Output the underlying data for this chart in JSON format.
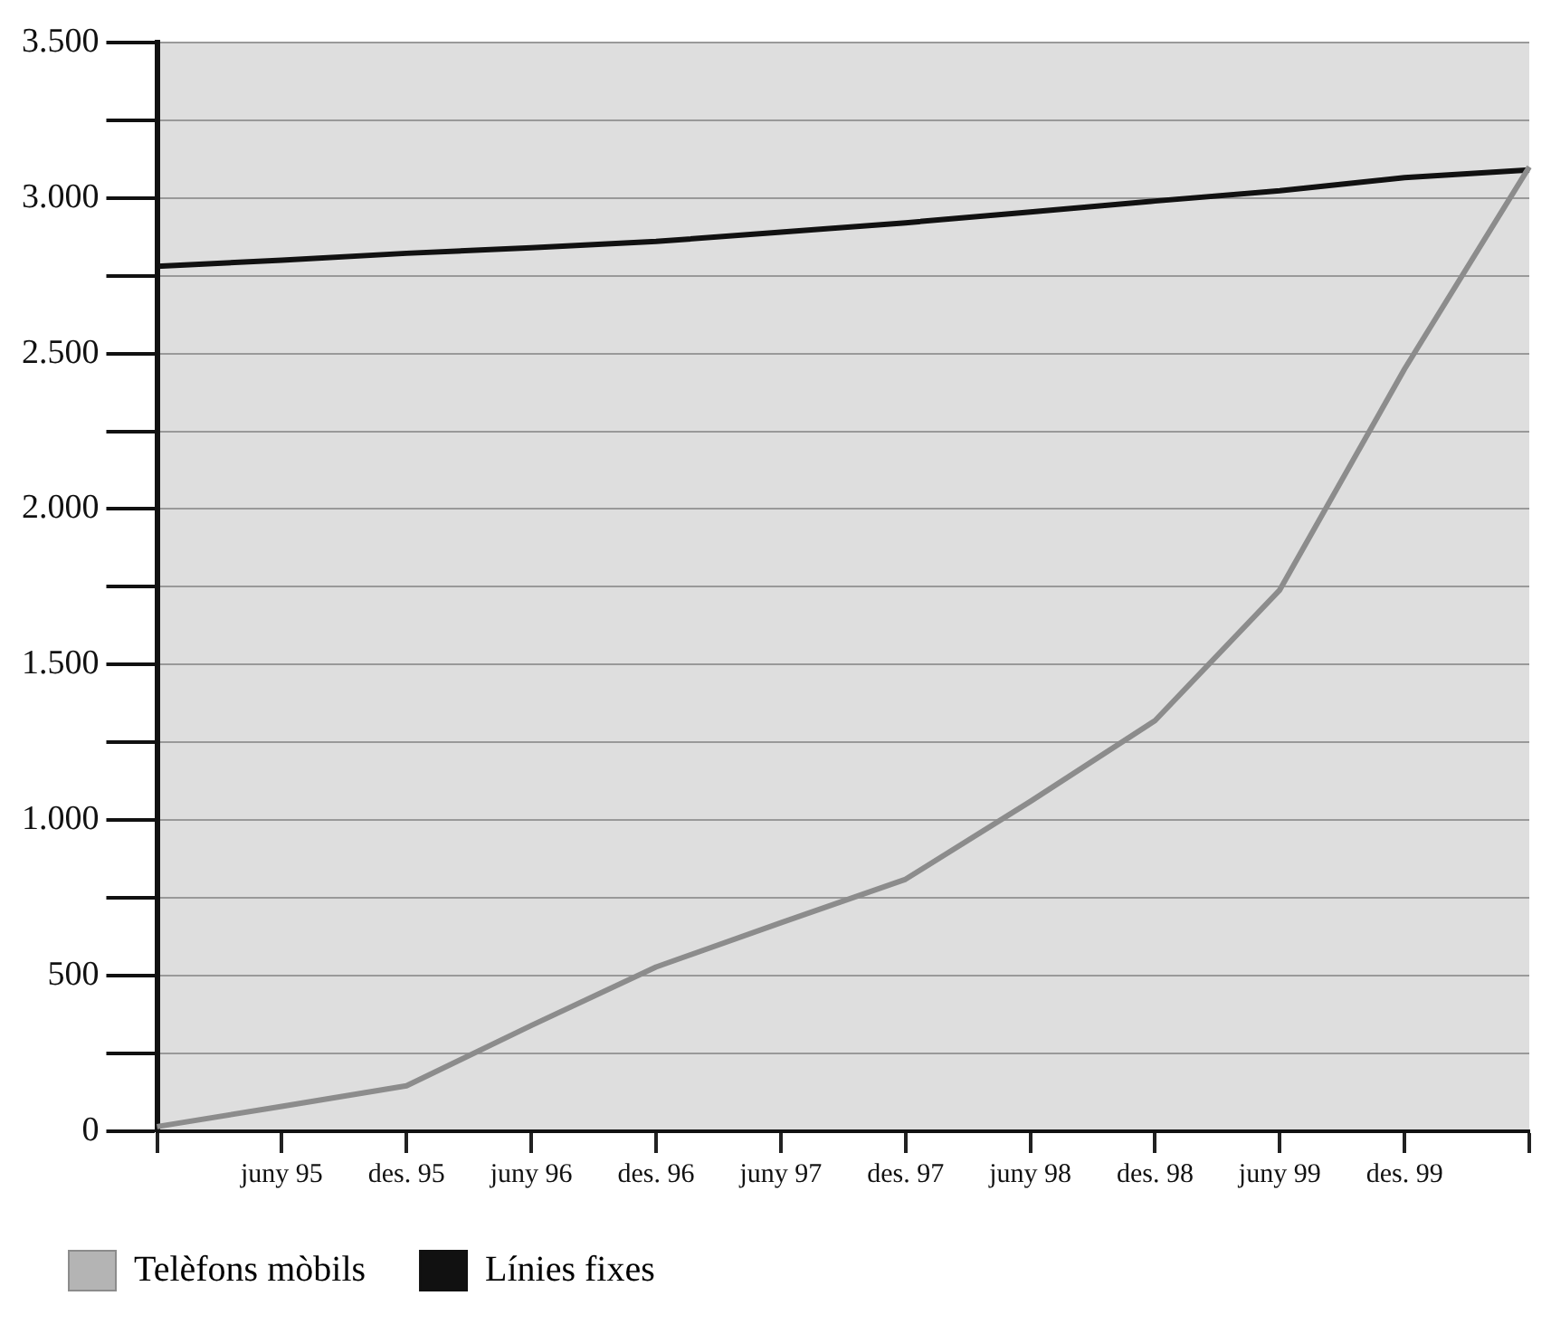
{
  "chart_data": {
    "type": "line",
    "categories": [
      null,
      "juny 95",
      "des. 95",
      "juny 96",
      "des. 96",
      "juny 97",
      "des. 97",
      "juny 98",
      "des. 98",
      "juny 99",
      "des. 99",
      null
    ],
    "series": [
      {
        "name": "Telèfons mòbils",
        "color": "#8c8c8c",
        "values": [
          15,
          80,
          146,
          340,
          528,
          670,
          810,
          1060,
          1320,
          1740,
          2450,
          3100
        ]
      },
      {
        "name": "Línies fixes",
        "color": "#111111",
        "values": [
          2780,
          2800,
          2822,
          2840,
          2860,
          2890,
          2920,
          2955,
          2990,
          3023,
          3065,
          3090
        ]
      }
    ],
    "ylim": [
      0,
      3500
    ],
    "yticks": [
      0,
      {
        "value": 250,
        "label": null
      },
      {
        "value": 500,
        "label": "500"
      },
      {
        "value": 750,
        "label": null
      },
      {
        "value": 1000,
        "label": "1.000"
      },
      {
        "value": 1250,
        "label": null
      },
      {
        "value": 1500,
        "label": "1.500"
      },
      {
        "value": 1750,
        "label": null
      },
      {
        "value": 2000,
        "label": "2.000"
      },
      {
        "value": 2250,
        "label": null
      },
      {
        "value": 2500,
        "label": "2.500"
      },
      {
        "value": 2750,
        "label": null
      },
      {
        "value": 3000,
        "label": "3.000"
      },
      {
        "value": 3250,
        "label": null
      },
      {
        "value": 3500,
        "label": "3.500"
      }
    ],
    "grid": "y",
    "legend": "bottom",
    "marker": "none",
    "line_style": "solid"
  }
}
